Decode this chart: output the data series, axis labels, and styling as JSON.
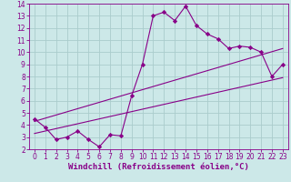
{
  "xlabel": "Windchill (Refroidissement éolien,°C)",
  "bg_color": "#cce8e8",
  "grid_color": "#aacccc",
  "line_color": "#880088",
  "hours": [
    0,
    1,
    2,
    3,
    4,
    5,
    6,
    7,
    8,
    9,
    10,
    11,
    12,
    13,
    14,
    15,
    16,
    17,
    18,
    19,
    20,
    21,
    22,
    23
  ],
  "temp": [
    4.5,
    3.8,
    2.8,
    3.0,
    3.5,
    2.8,
    2.2,
    3.2,
    3.1,
    6.4,
    9.0,
    13.0,
    13.3,
    12.6,
    13.8,
    12.2,
    11.5,
    11.1,
    10.3,
    10.5,
    10.4,
    10.0,
    8.0,
    9.0
  ],
  "line1_x": [
    0,
    23
  ],
  "line1_y": [
    4.3,
    10.3
  ],
  "line2_x": [
    0,
    23
  ],
  "line2_y": [
    3.3,
    7.9
  ],
  "xlim": [
    -0.5,
    23.5
  ],
  "ylim": [
    2,
    14
  ],
  "yticks": [
    2,
    3,
    4,
    5,
    6,
    7,
    8,
    9,
    10,
    11,
    12,
    13,
    14
  ],
  "xticks": [
    0,
    1,
    2,
    3,
    4,
    5,
    6,
    7,
    8,
    9,
    10,
    11,
    12,
    13,
    14,
    15,
    16,
    17,
    18,
    19,
    20,
    21,
    22,
    23
  ],
  "marker": "D",
  "markersize": 2.2,
  "linewidth": 0.8,
  "xlabel_fontsize": 6.5,
  "tick_fontsize": 5.5,
  "tick_color": "#880088"
}
